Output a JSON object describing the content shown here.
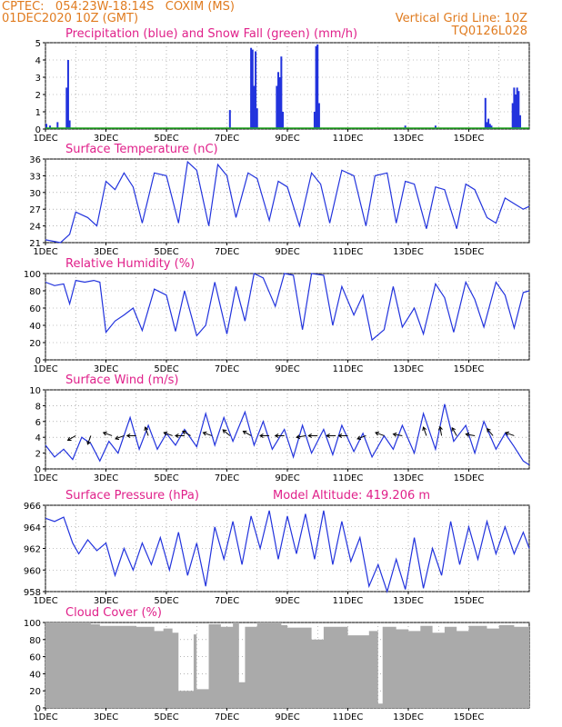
{
  "header": {
    "line1": "CPTEC:   054:23W-18:14S   COXIM (MS)",
    "line2": "01DEC2020 10Z (GMT)",
    "grid_note": "Vertical Grid Line: 10Z",
    "code": "TQ0126L028"
  },
  "x_ticks": [
    "1DEC",
    "3DEC",
    "5DEC",
    "7DEC",
    "9DEC",
    "11DEC",
    "13DEC",
    "15DEC"
  ],
  "colors": {
    "title": "#e0208a",
    "header": "#e07b1f",
    "line": "#2233dd",
    "snow": "#22aa22",
    "cloud": "#aaaaaa",
    "grid": "#888888"
  },
  "chart_data": [
    {
      "type": "bar",
      "title": "Precipitation (blue) and Snow Fall (green) (mm/h)",
      "ylim": [
        0,
        5
      ],
      "yticks": [
        0,
        1,
        2,
        3,
        4,
        5
      ],
      "series": [
        {
          "name": "Precipitation",
          "x": [
            0.03,
            0.15,
            0.4,
            0.7,
            0.75,
            0.8,
            6.1,
            6.8,
            6.85,
            6.9,
            6.95,
            7.0,
            7.65,
            7.7,
            7.75,
            7.8,
            7.85,
            8.9,
            8.95,
            9.0,
            9.05,
            11.9,
            12.9,
            14.55,
            14.6,
            14.65,
            14.7,
            14.75,
            15.45,
            15.5,
            15.55,
            15.6,
            15.65,
            15.7
          ],
          "values": [
            0.3,
            0.2,
            0.4,
            2.4,
            4.0,
            0.5,
            1.1,
            4.7,
            4.6,
            2.5,
            4.5,
            1.2,
            2.5,
            3.3,
            3.0,
            4.2,
            1.0,
            1.0,
            4.8,
            4.9,
            1.5,
            0.2,
            0.2,
            1.8,
            0.4,
            0.6,
            0.3,
            0.2,
            1.5,
            2.4,
            2.0,
            2.4,
            2.2,
            0.8
          ]
        },
        {
          "name": "Snow Fall",
          "values": [
            0
          ]
        }
      ]
    },
    {
      "type": "line",
      "title": "Surface Temperature (nC)",
      "ylim": [
        21,
        36
      ],
      "yticks": [
        21,
        24,
        27,
        30,
        33,
        36
      ],
      "x": [
        0,
        0.5,
        0.8,
        1.0,
        1.4,
        1.7,
        2.0,
        2.3,
        2.6,
        2.9,
        3.2,
        3.6,
        4.0,
        4.4,
        4.7,
        5.0,
        5.4,
        5.7,
        6.0,
        6.3,
        6.7,
        7.0,
        7.4,
        7.7,
        8.0,
        8.4,
        8.8,
        9.1,
        9.4,
        9.8,
        10.2,
        10.6,
        10.9,
        11.3,
        11.6,
        11.9,
        12.2,
        12.6,
        12.9,
        13.2,
        13.6,
        13.9,
        14.2,
        14.6,
        14.9,
        15.2,
        15.5,
        15.8,
        16.0
      ],
      "values": [
        21.5,
        21.0,
        22.5,
        26.5,
        25.5,
        24.0,
        32.0,
        30.5,
        33.5,
        31.0,
        24.5,
        33.5,
        33.0,
        24.5,
        35.5,
        34.0,
        24.0,
        35.0,
        33.0,
        25.5,
        33.5,
        32.5,
        25.0,
        32.0,
        31.0,
        24.0,
        33.5,
        31.5,
        24.5,
        34.0,
        33.0,
        24.0,
        33.0,
        33.5,
        24.5,
        32.0,
        31.5,
        23.5,
        31.0,
        30.5,
        23.5,
        31.5,
        30.5,
        25.5,
        24.5,
        29.0,
        28.0,
        27.0,
        27.5
      ]
    },
    {
      "type": "line",
      "title": "Relative Humidity (%)",
      "ylim": [
        0,
        100
      ],
      "yticks": [
        0,
        20,
        40,
        60,
        80,
        100
      ],
      "x": [
        0,
        0.3,
        0.6,
        0.8,
        1.0,
        1.3,
        1.6,
        1.8,
        2.0,
        2.3,
        2.6,
        2.9,
        3.2,
        3.6,
        4.0,
        4.3,
        4.6,
        5.0,
        5.3,
        5.6,
        6.0,
        6.3,
        6.6,
        6.9,
        7.2,
        7.6,
        7.9,
        8.2,
        8.5,
        8.8,
        9.2,
        9.5,
        9.8,
        10.2,
        10.5,
        10.8,
        11.2,
        11.5,
        11.8,
        12.2,
        12.5,
        12.9,
        13.2,
        13.5,
        13.9,
        14.2,
        14.5,
        14.9,
        15.2,
        15.5,
        15.8,
        16.0
      ],
      "values": [
        90,
        86,
        88,
        65,
        92,
        90,
        92,
        90,
        32,
        45,
        52,
        60,
        34,
        82,
        75,
        33,
        80,
        28,
        40,
        90,
        30,
        85,
        45,
        100,
        95,
        62,
        100,
        98,
        35,
        100,
        98,
        40,
        85,
        52,
        75,
        23,
        35,
        85,
        38,
        60,
        30,
        88,
        72,
        32,
        90,
        70,
        38,
        90,
        75,
        37,
        78,
        80
      ]
    },
    {
      "type": "line",
      "title": "Surface Wind (m/s)",
      "ylim": [
        0,
        10
      ],
      "yticks": [
        0,
        2,
        4,
        6,
        8,
        10
      ],
      "x": [
        0,
        0.3,
        0.6,
        0.9,
        1.2,
        1.5,
        1.8,
        2.1,
        2.4,
        2.8,
        3.1,
        3.4,
        3.7,
        4.0,
        4.3,
        4.6,
        5.0,
        5.3,
        5.6,
        5.9,
        6.2,
        6.6,
        6.9,
        7.2,
        7.5,
        7.9,
        8.2,
        8.5,
        8.8,
        9.2,
        9.5,
        9.8,
        10.2,
        10.5,
        10.8,
        11.2,
        11.5,
        11.8,
        12.2,
        12.5,
        12.9,
        13.2,
        13.5,
        13.9,
        14.2,
        14.5,
        14.9,
        15.2,
        15.5,
        15.8,
        16.0
      ],
      "values": [
        3.0,
        1.5,
        2.5,
        1.2,
        4.0,
        3.2,
        1.0,
        3.5,
        2.0,
        6.5,
        2.5,
        5.5,
        2.5,
        4.5,
        3.0,
        5.0,
        2.8,
        7.0,
        3.0,
        6.5,
        3.5,
        7.2,
        3.0,
        6.0,
        2.5,
        5.0,
        1.5,
        5.5,
        2.0,
        5.0,
        1.8,
        5.5,
        2.2,
        4.5,
        1.5,
        4.2,
        2.5,
        5.5,
        2.0,
        7.0,
        2.5,
        8.2,
        3.5,
        5.5,
        2.0,
        6.0,
        2.5,
        4.5,
        2.8,
        1.0,
        0.5
      ]
    },
    {
      "type": "line",
      "title": "Surface Pressure (hPa)",
      "annotation": "Model Altitude: 419.206  m",
      "ylim": [
        958,
        966
      ],
      "yticks": [
        958,
        960,
        962,
        964,
        966
      ],
      "x": [
        0,
        0.3,
        0.6,
        0.9,
        1.1,
        1.4,
        1.7,
        2.0,
        2.3,
        2.6,
        2.9,
        3.2,
        3.5,
        3.8,
        4.1,
        4.4,
        4.7,
        5.0,
        5.3,
        5.6,
        5.9,
        6.2,
        6.5,
        6.8,
        7.1,
        7.4,
        7.7,
        8.0,
        8.3,
        8.6,
        8.9,
        9.2,
        9.5,
        9.8,
        10.1,
        10.4,
        10.7,
        11.0,
        11.3,
        11.6,
        11.9,
        12.2,
        12.5,
        12.8,
        13.1,
        13.4,
        13.7,
        14.0,
        14.3,
        14.6,
        14.9,
        15.2,
        15.5,
        15.8,
        16.0
      ],
      "values": [
        964.8,
        964.5,
        964.9,
        962.5,
        961.5,
        962.8,
        961.8,
        962.5,
        959.5,
        962.0,
        960.0,
        962.5,
        960.5,
        963.0,
        960.0,
        963.5,
        959.5,
        962.5,
        958.5,
        964.0,
        961.0,
        964.5,
        960.5,
        965.0,
        962.0,
        965.5,
        961.0,
        965.0,
        961.5,
        965.2,
        961.0,
        965.5,
        960.5,
        964.5,
        960.8,
        963.0,
        958.5,
        960.5,
        958.0,
        961.0,
        958.2,
        963.0,
        958.3,
        962.0,
        959.5,
        964.5,
        960.5,
        964.0,
        961.0,
        964.5,
        961.5,
        964.0,
        961.5,
        963.5,
        962.0
      ]
    },
    {
      "type": "bar",
      "title": "Cloud Cover (%)",
      "ylim": [
        0,
        100
      ],
      "yticks": [
        0,
        20,
        40,
        60,
        80,
        100
      ],
      "x": [
        0,
        1.5,
        1.8,
        3.0,
        3.6,
        3.9,
        4.2,
        4.4,
        4.9,
        5.0,
        5.4,
        5.8,
        6.2,
        6.4,
        6.6,
        7.0,
        7.8,
        8.0,
        8.8,
        9.2,
        10.0,
        10.7,
        11.0,
        11.15,
        11.6,
        12.0,
        12.4,
        12.8,
        13.2,
        13.6,
        14.0,
        14.6,
        15.0,
        15.5,
        16.0
      ],
      "values": [
        100,
        98,
        96,
        95,
        90,
        93,
        88,
        20,
        86,
        22,
        98,
        95,
        100,
        30,
        95,
        100,
        97,
        94,
        80,
        95,
        85,
        90,
        5,
        95,
        92,
        90,
        96,
        88,
        95,
        90,
        96,
        93,
        97,
        95,
        98
      ]
    }
  ]
}
